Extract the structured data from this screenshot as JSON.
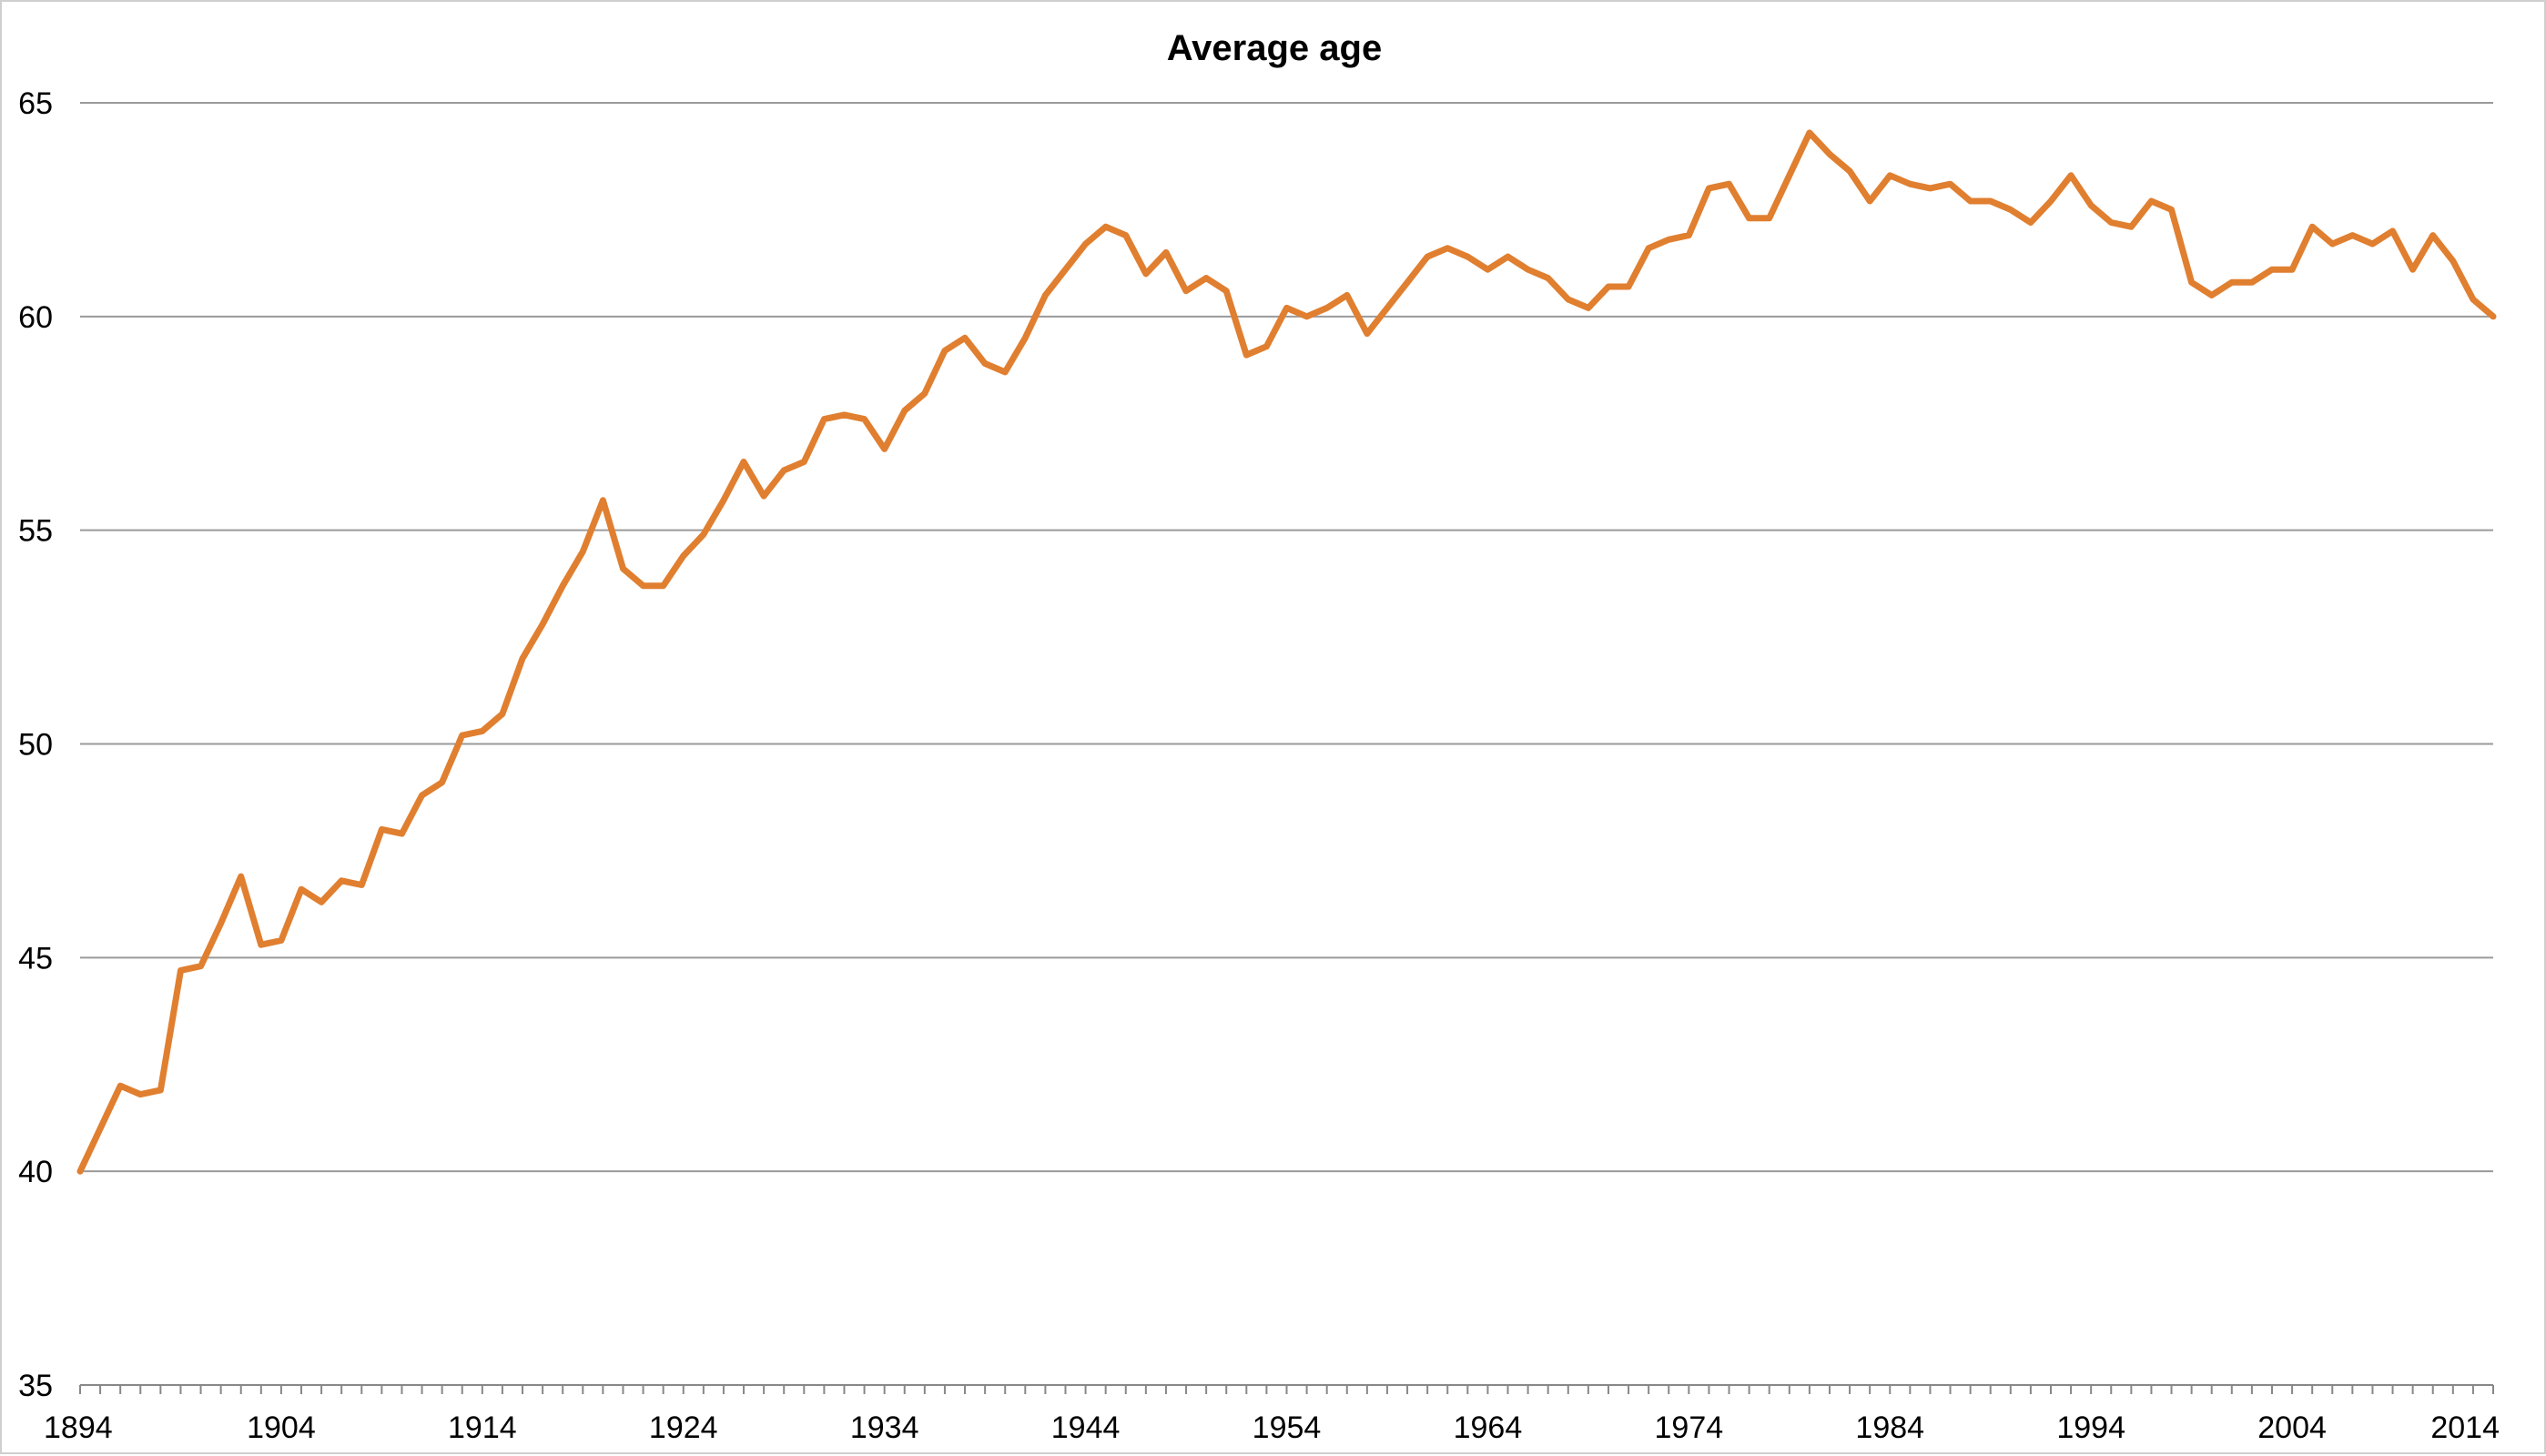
{
  "chart_data": {
    "type": "line",
    "title": "Average age",
    "xlabel": "",
    "ylabel": "",
    "x_tick_labels": [
      "1894",
      "1904",
      "1914",
      "1924",
      "1934",
      "1944",
      "1954",
      "1964",
      "1974",
      "1984",
      "1994",
      "2004",
      "2014"
    ],
    "y_tick_labels": [
      "35",
      "40",
      "45",
      "50",
      "55",
      "60",
      "65"
    ],
    "xlim": [
      1894,
      2014
    ],
    "ylim": [
      35,
      65
    ],
    "x_ticks": [
      1894,
      1904,
      1914,
      1924,
      1934,
      1944,
      1954,
      1964,
      1974,
      1984,
      1994,
      2004,
      2014
    ],
    "y_ticks": [
      35,
      40,
      45,
      50,
      55,
      60,
      65
    ],
    "grid": "horizontal",
    "legend": "none",
    "series": [
      {
        "color": "#E07F30",
        "x": [
          1894,
          1895,
          1896,
          1897,
          1898,
          1899,
          1900,
          1901,
          1902,
          1903,
          1904,
          1905,
          1906,
          1907,
          1908,
          1909,
          1910,
          1911,
          1912,
          1913,
          1914,
          1915,
          1916,
          1917,
          1918,
          1919,
          1920,
          1921,
          1922,
          1923,
          1924,
          1925,
          1926,
          1927,
          1928,
          1929,
          1930,
          1931,
          1932,
          1933,
          1934,
          1935,
          1936,
          1937,
          1938,
          1939,
          1940,
          1941,
          1942,
          1943,
          1944,
          1945,
          1946,
          1947,
          1948,
          1949,
          1950,
          1951,
          1952,
          1953,
          1954,
          1955,
          1956,
          1957,
          1958,
          1959,
          1960,
          1961,
          1962,
          1963,
          1964,
          1965,
          1966,
          1967,
          1968,
          1969,
          1970,
          1971,
          1972,
          1973,
          1974,
          1975,
          1976,
          1977,
          1978,
          1979,
          1980,
          1981,
          1982,
          1983,
          1984,
          1985,
          1986,
          1987,
          1988,
          1989,
          1990,
          1991,
          1992,
          1993,
          1994,
          1995,
          1996,
          1997,
          1998,
          1999,
          2000,
          2001,
          2002,
          2003,
          2004,
          2005,
          2006,
          2007,
          2008,
          2009,
          2010,
          2011,
          2012,
          2013,
          2014
        ],
        "values": [
          40.0,
          41.0,
          42.0,
          41.8,
          41.9,
          44.7,
          44.8,
          45.8,
          46.9,
          45.3,
          45.4,
          46.6,
          46.3,
          46.8,
          46.7,
          48.0,
          47.9,
          48.8,
          49.1,
          50.2,
          50.3,
          50.7,
          52.0,
          52.8,
          53.7,
          54.5,
          55.7,
          54.1,
          53.7,
          53.7,
          54.4,
          54.9,
          55.7,
          56.6,
          55.8,
          56.4,
          56.6,
          57.6,
          57.7,
          57.6,
          56.9,
          57.8,
          58.2,
          59.2,
          59.5,
          58.9,
          58.7,
          59.5,
          60.5,
          61.1,
          61.7,
          62.1,
          61.9,
          61.0,
          61.5,
          60.6,
          60.9,
          60.6,
          59.1,
          59.3,
          60.2,
          60.0,
          60.2,
          60.5,
          59.6,
          60.2,
          60.8,
          61.4,
          61.6,
          61.4,
          61.1,
          61.4,
          61.1,
          60.9,
          60.4,
          60.2,
          60.7,
          60.7,
          61.6,
          61.8,
          61.9,
          63.0,
          63.1,
          62.3,
          62.3,
          63.3,
          64.3,
          63.8,
          63.4,
          62.7,
          63.3,
          63.1,
          63.0,
          63.1,
          62.7,
          62.7,
          62.5,
          62.2,
          62.7,
          63.3,
          62.6,
          62.2,
          62.1,
          62.7,
          62.5,
          60.8,
          60.5,
          60.8,
          60.8,
          61.1,
          61.1,
          62.1,
          61.7,
          61.9,
          61.7,
          62.0,
          61.1,
          61.9,
          61.3,
          60.4,
          60.0
        ]
      }
    ]
  }
}
